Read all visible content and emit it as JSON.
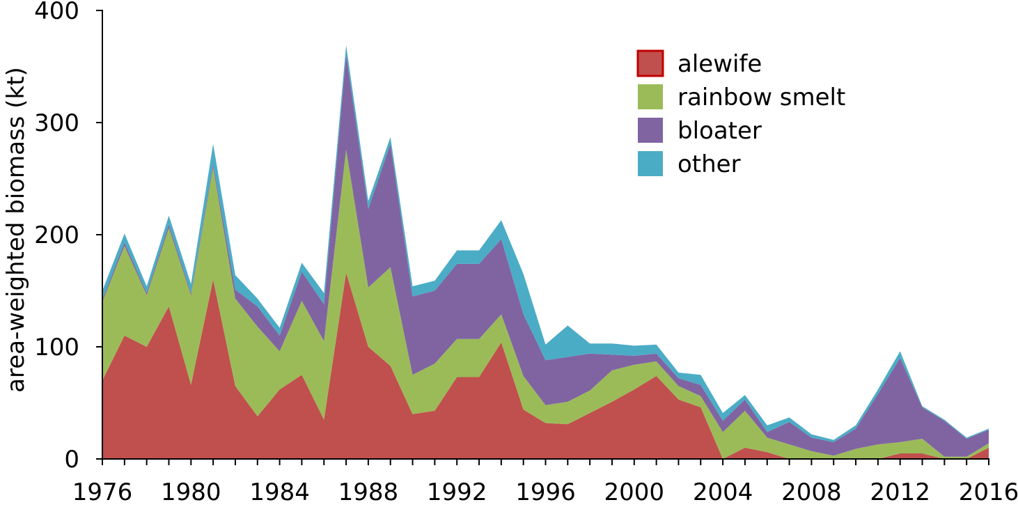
{
  "chart_data": {
    "type": "area",
    "stacked": true,
    "ylabel": "area-weighted biomass (kt)",
    "xlabel": "",
    "title": "",
    "xlim": [
      1976,
      2016
    ],
    "ylim": [
      0,
      400
    ],
    "x_ticks": [
      1976,
      1980,
      1984,
      1988,
      1992,
      1996,
      2000,
      2004,
      2008,
      2012,
      2016
    ],
    "y_ticks": [
      0,
      100,
      200,
      300,
      400
    ],
    "grid": false,
    "legend_position": "top-right",
    "x": [
      1976,
      1977,
      1978,
      1979,
      1980,
      1981,
      1982,
      1983,
      1984,
      1985,
      1986,
      1987,
      1988,
      1989,
      1990,
      1991,
      1992,
      1993,
      1994,
      1995,
      1996,
      1997,
      1998,
      1999,
      2000,
      2001,
      2002,
      2003,
      2004,
      2005,
      2006,
      2007,
      2008,
      2009,
      2010,
      2011,
      2012,
      2013,
      2014,
      2015,
      2016
    ],
    "series": [
      {
        "name": "alewife",
        "color": "#c0504d",
        "values": [
          70,
          110,
          100,
          136,
          66,
          160,
          65,
          38,
          62,
          75,
          35,
          166,
          100,
          83,
          40,
          43,
          73,
          73,
          104,
          44,
          32,
          31,
          41,
          51,
          62,
          74,
          53,
          46,
          0,
          10,
          6,
          0,
          0,
          0,
          0,
          0,
          5,
          5,
          0,
          0,
          10
        ]
      },
      {
        "name": "rainbow smelt",
        "color": "#9bbb59",
        "values": [
          70,
          80,
          46,
          70,
          80,
          100,
          78,
          80,
          34,
          66,
          70,
          110,
          53,
          88,
          35,
          42,
          34,
          34,
          25,
          30,
          16,
          20,
          20,
          28,
          22,
          13,
          12,
          10,
          24,
          33,
          13,
          13,
          7,
          3,
          9,
          13,
          10,
          13,
          2,
          2,
          4
        ]
      },
      {
        "name": "bloater",
        "color": "#8064a2",
        "values": [
          2,
          3,
          2,
          3,
          2,
          3,
          8,
          18,
          14,
          26,
          33,
          85,
          70,
          110,
          70,
          65,
          67,
          67,
          67,
          55,
          40,
          40,
          33,
          14,
          8,
          7,
          7,
          10,
          10,
          10,
          5,
          20,
          12,
          12,
          18,
          45,
          75,
          28,
          32,
          16,
          12
        ]
      },
      {
        "name": "other",
        "color": "#4bacc6",
        "values": [
          8,
          8,
          6,
          8,
          8,
          18,
          13,
          7,
          7,
          8,
          10,
          8,
          7,
          6,
          9,
          9,
          12,
          12,
          17,
          36,
          14,
          28,
          9,
          10,
          9,
          8,
          5,
          9,
          7,
          4,
          6,
          4,
          3,
          2,
          3,
          4,
          6,
          1,
          1,
          1,
          1
        ]
      }
    ]
  }
}
